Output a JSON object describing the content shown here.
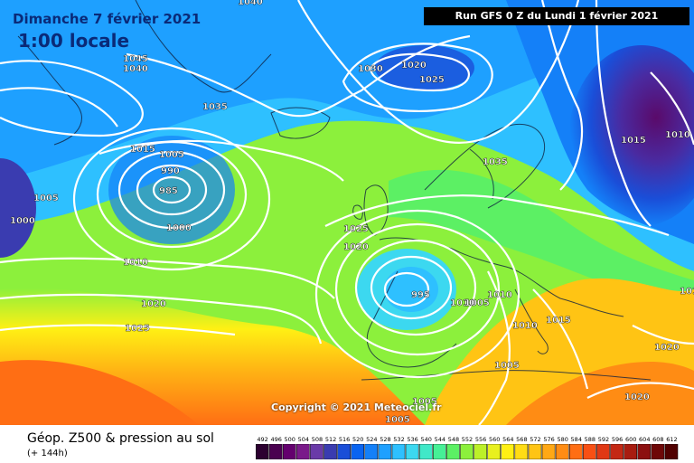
{
  "header": {
    "date_title": "Dimanche 7 février 2021",
    "time_title": "1:00 locale",
    "run_info": "Run GFS 0 Z du Lundi 1 février 2021"
  },
  "copyright": "Copyright © 2021 Meteociel.fr",
  "footer": {
    "title": "Géop. Z500 & pression au sol",
    "subtitle": "(+ 144h)"
  },
  "isobar_labels": [
    "1040",
    "1045",
    "1040",
    "1030",
    "1020",
    "1025",
    "1035",
    "1015",
    "1005",
    "990",
    "985",
    "1005",
    "1000",
    "1000",
    "1010",
    "1020",
    "1025",
    "1035",
    "1025",
    "1020",
    "995",
    "1010",
    "1005",
    "1010",
    "1010",
    "1015",
    "1020",
    "1005",
    "1005",
    "1005",
    "1020",
    "1015",
    "1010",
    "1010"
  ],
  "legend": {
    "values": [
      "492",
      "496",
      "500",
      "504",
      "508",
      "512",
      "516",
      "520",
      "524",
      "528",
      "532",
      "536",
      "540",
      "544",
      "548",
      "552",
      "556",
      "560",
      "564",
      "568",
      "572",
      "576",
      "580",
      "584",
      "588",
      "592",
      "596",
      "600",
      "604",
      "608",
      "612"
    ],
    "colors": [
      "#2c0030",
      "#4a0050",
      "#64006e",
      "#7a1a8a",
      "#6a3aa8",
      "#3a3cb0",
      "#1a4ed8",
      "#0a64f0",
      "#1480f8",
      "#1ea0ff",
      "#2ec0ff",
      "#3cd8f0",
      "#40e8c8",
      "#46f096",
      "#5cf064",
      "#8cf03c",
      "#bcf028",
      "#e8f01e",
      "#fff014",
      "#ffdc14",
      "#ffc414",
      "#ffa814",
      "#ff8c14",
      "#ff6e14",
      "#f85014",
      "#e03814",
      "#c42814",
      "#a81c10",
      "#8c1010",
      "#6e0808",
      "#500000"
    ]
  },
  "colors": {
    "title_text": "#0a2a78",
    "isobar": "#ffffff"
  }
}
